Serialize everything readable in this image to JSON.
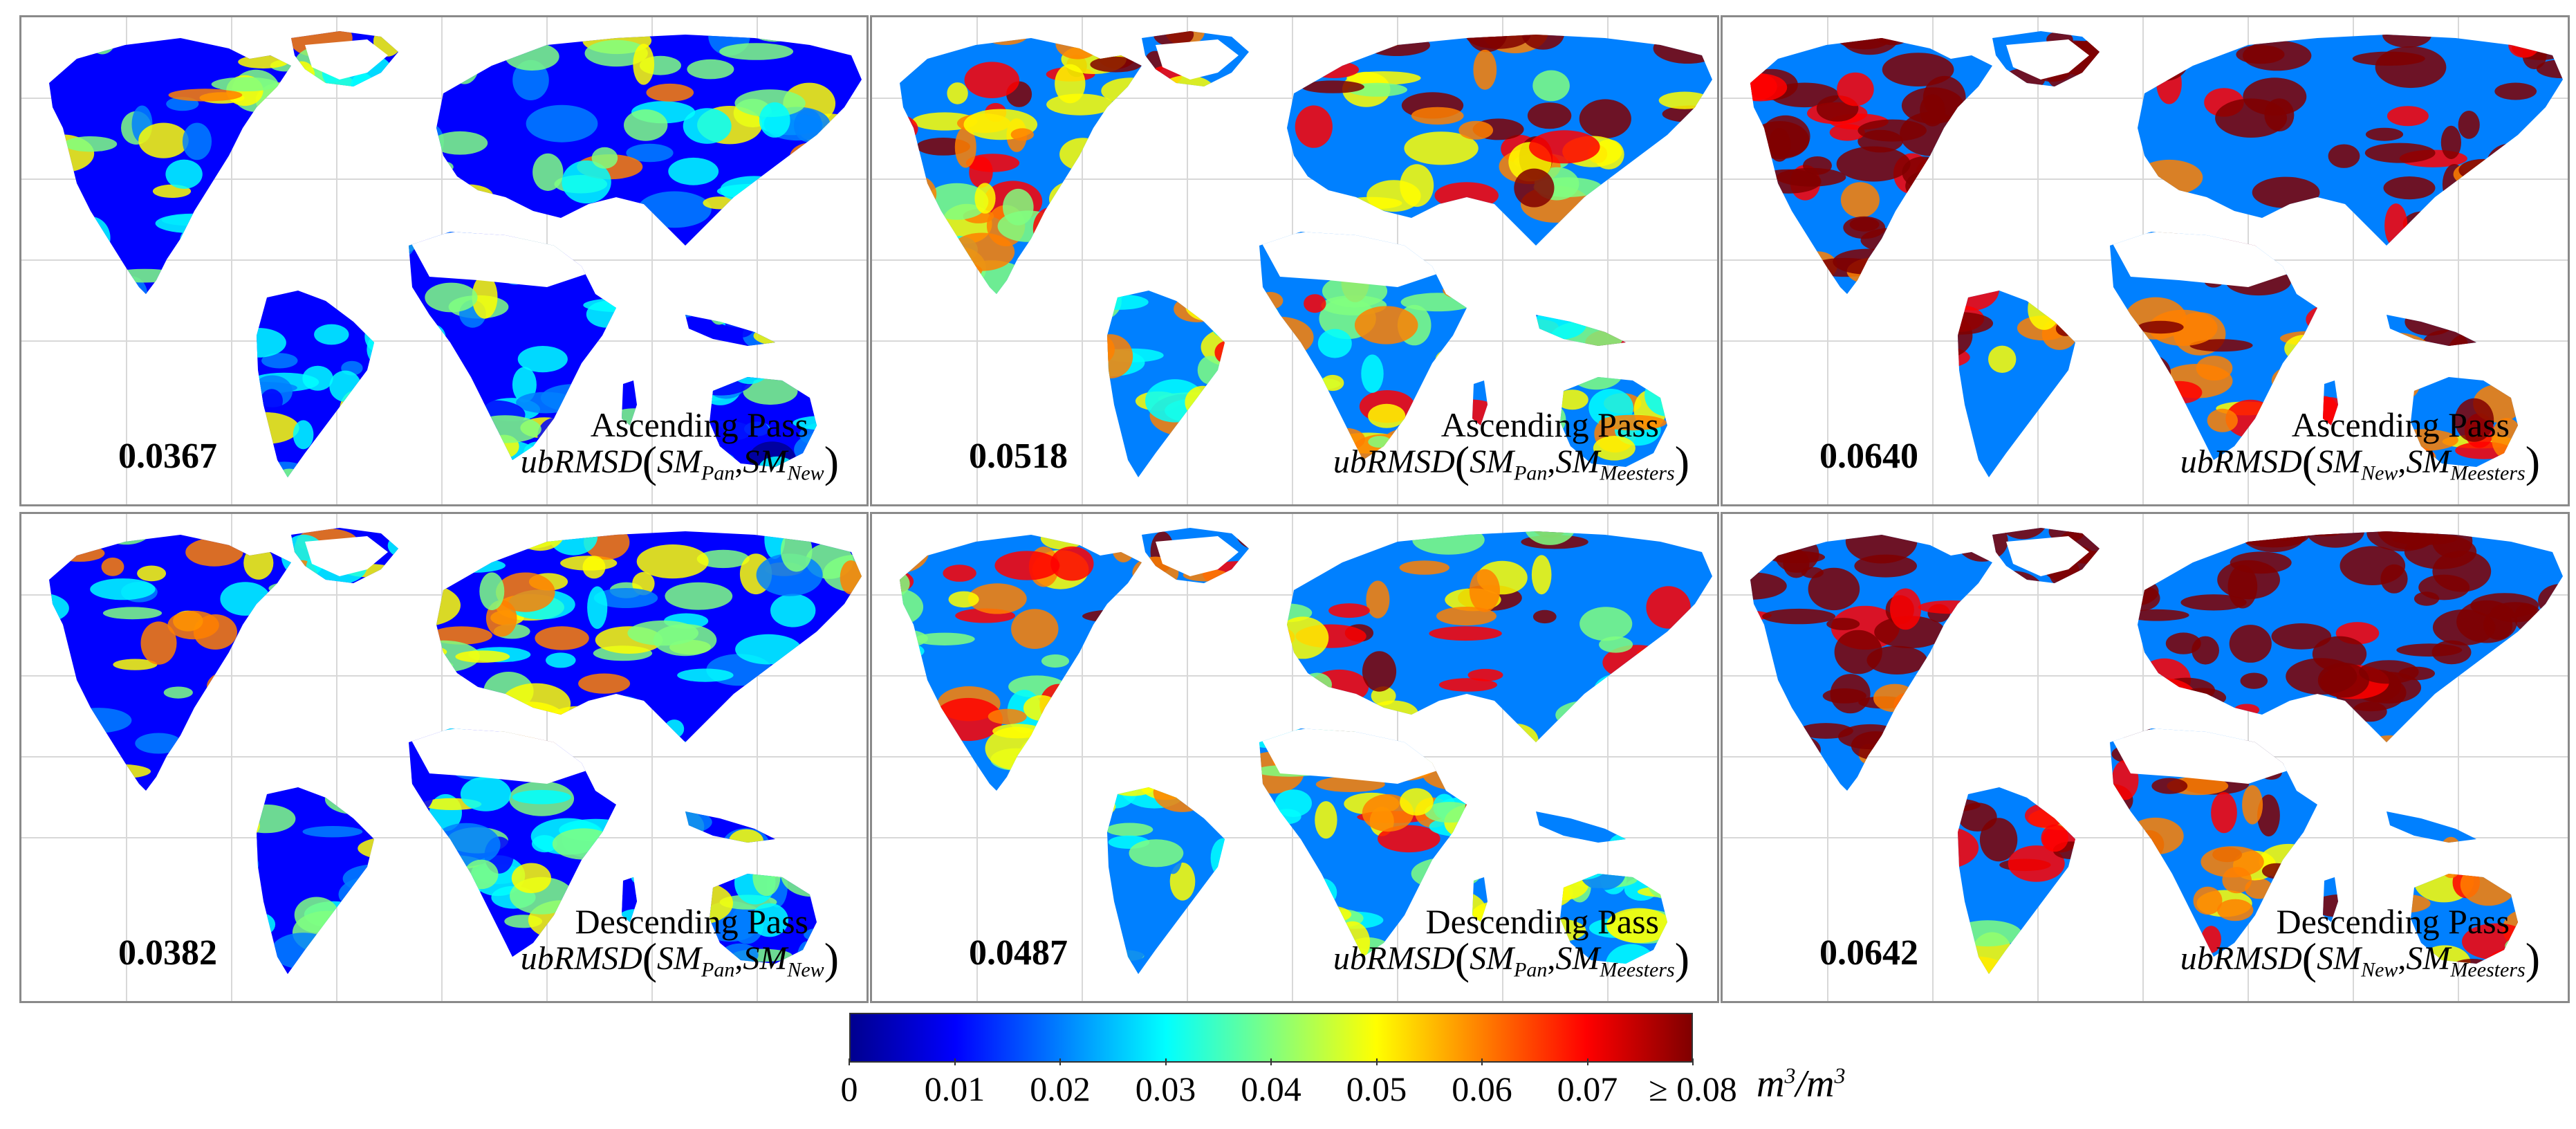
{
  "panels": [
    {
      "value": "0.0367",
      "pass": "Ascending Pass",
      "metric": {
        "func": "ubRMSD",
        "a": "SM",
        "a_sub": "Pan",
        "b": "SM",
        "b_sub": "New"
      },
      "intensity": 0.35
    },
    {
      "value": "0.0518",
      "pass": "Ascending Pass",
      "metric": {
        "func": "ubRMSD",
        "a": "SM",
        "a_sub": "Pan",
        "b": "SM",
        "b_sub": "Meesters"
      },
      "intensity": 0.55
    },
    {
      "value": "0.0640",
      "pass": "Ascending Pass",
      "metric": {
        "func": "ubRMSD",
        "a": "SM",
        "a_sub": "New",
        "b": "SM",
        "b_sub": "Meesters"
      },
      "intensity": 0.78
    },
    {
      "value": "0.0382",
      "pass": "Descending Pass",
      "metric": {
        "func": "ubRMSD",
        "a": "SM",
        "a_sub": "Pan",
        "b": "SM",
        "b_sub": "New"
      },
      "intensity": 0.38
    },
    {
      "value": "0.0487",
      "pass": "Descending Pass",
      "metric": {
        "func": "ubRMSD",
        "a": "SM",
        "a_sub": "Pan",
        "b": "SM",
        "b_sub": "Meesters"
      },
      "intensity": 0.52
    },
    {
      "value": "0.0642",
      "pass": "Descending Pass",
      "metric": {
        "func": "ubRMSD",
        "a": "SM",
        "a_sub": "New",
        "b": "SM",
        "b_sub": "Meesters"
      },
      "intensity": 0.8
    }
  ],
  "colorbar": {
    "ticks": [
      "0",
      "0.01",
      "0.02",
      "0.03",
      "0.04",
      "0.05",
      "0.06",
      "0.07",
      "≥ 0.08"
    ],
    "unit_base": "m",
    "unit_exp": "3",
    "unit_sep": "/",
    "colors": [
      "#00008f",
      "#0000ff",
      "#0080ff",
      "#00ffff",
      "#80ff80",
      "#ffff00",
      "#ff8000",
      "#ff0000",
      "#800000"
    ]
  }
}
